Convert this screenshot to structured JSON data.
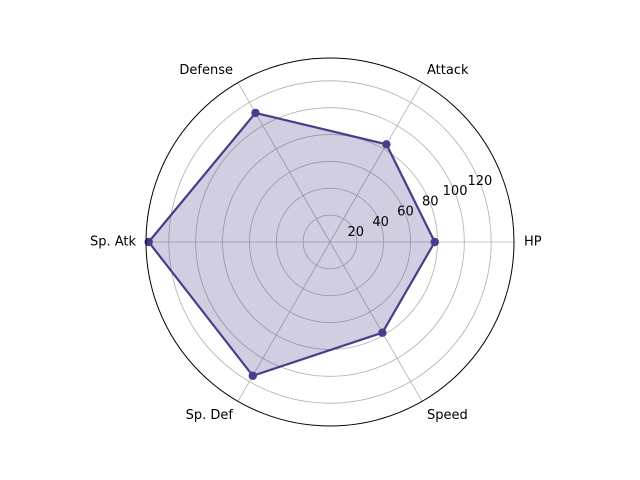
{
  "chart_data": {
    "type": "radar",
    "categories": [
      "HP",
      "Attack",
      "Defense",
      "Sp. Atk",
      "Sp. Def",
      "Speed"
    ],
    "series": [
      {
        "values": [
          78,
          84,
          111,
          135,
          115,
          78
        ],
        "color": "#483d8b",
        "fill_color": "#483d8b",
        "fill_opacity": 0.25
      }
    ],
    "r_ticks": [
      20,
      40,
      60,
      80,
      100,
      120
    ],
    "r_tick_labels": [
      "20",
      "40",
      "60",
      "80",
      "100",
      "120"
    ],
    "rlim": [
      0,
      137
    ],
    "grid": true,
    "legend": false
  }
}
